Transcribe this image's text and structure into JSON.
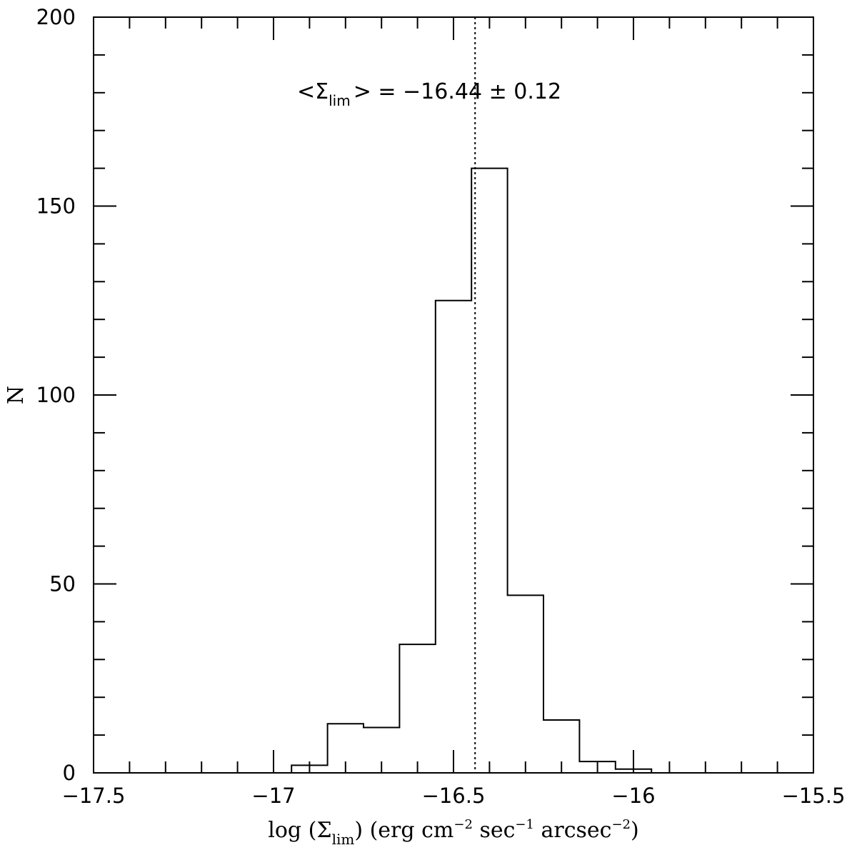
{
  "chart_data": {
    "type": "histogram",
    "title": "",
    "xlabel": "log (Σ_lim) (erg cm^-2 sec^-1 arcsec^-2)",
    "xlabel_parts": {
      "prefix": "log (Σ",
      "sub": "lim",
      "mid": ") (erg cm",
      "exp1": "−2",
      "sec": " sec",
      "exp2": "−1",
      "arcsec": " arcsec",
      "exp3": "−2",
      "suffix": ")"
    },
    "ylabel": "N",
    "xlim": [
      -17.5,
      -15.5
    ],
    "ylim": [
      0,
      200
    ],
    "x_ticks": [
      -17.5,
      -17,
      -16.5,
      -16,
      -15.5
    ],
    "x_tick_labels": [
      "−17.5",
      "−17",
      "−16.5",
      "−16",
      "−15.5"
    ],
    "y_ticks": [
      0,
      50,
      100,
      150,
      200
    ],
    "y_tick_labels": [
      "0",
      "50",
      "100",
      "150",
      "200"
    ],
    "bin_edges": [
      -17.0,
      -16.95,
      -16.85,
      -16.75,
      -16.65,
      -16.55,
      -16.45,
      -16.35,
      -16.25,
      -16.15,
      -16.05,
      -15.95
    ],
    "counts": [
      0,
      2,
      13,
      12,
      34,
      125,
      160,
      47,
      14,
      3,
      1
    ],
    "mean_line_x": -16.44,
    "annotation": {
      "open": "<Σ",
      "sub": "lim",
      "close": "> = −16.44 ± 0.12"
    },
    "grid": false,
    "legend": "none"
  }
}
